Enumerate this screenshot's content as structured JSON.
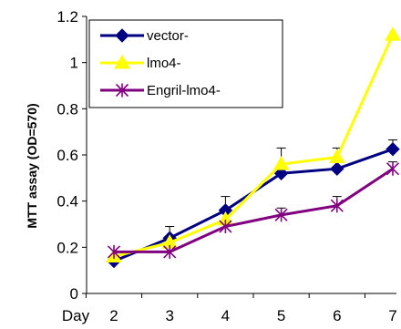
{
  "chart_data": {
    "type": "line",
    "categories": [
      "2",
      "3",
      "4",
      "5",
      "6",
      "7"
    ],
    "xlabel": "Day",
    "ylabel": "MTT assay (OD=570)",
    "ylim": [
      0,
      1.2
    ],
    "yticks": [
      "0",
      "0.2",
      "0.4",
      "0.6",
      "0.8",
      "1",
      "1.2"
    ],
    "grid": false,
    "legend_position": "top-left",
    "series": [
      {
        "name": "vector-",
        "color": "#000080",
        "marker": "diamond",
        "values": [
          0.14,
          0.24,
          0.36,
          0.52,
          0.54,
          0.625
        ],
        "errors": [
          0.0,
          0.05,
          0.06,
          0.0,
          0.0,
          0.04
        ]
      },
      {
        "name": "lmo4-",
        "color": "#FFFF00",
        "marker": "triangle",
        "values": [
          0.16,
          0.22,
          0.32,
          0.56,
          0.59,
          1.12
        ],
        "errors": [
          0.0,
          0.0,
          0.0,
          0.07,
          0.04,
          0.0
        ]
      },
      {
        "name": "Engril-lmo4-",
        "color": "#800080",
        "marker": "asterisk",
        "values": [
          0.18,
          0.18,
          0.29,
          0.34,
          0.38,
          0.54
        ],
        "errors": [
          0.0,
          0.0,
          0.0,
          0.03,
          0.04,
          0.03
        ]
      }
    ]
  }
}
